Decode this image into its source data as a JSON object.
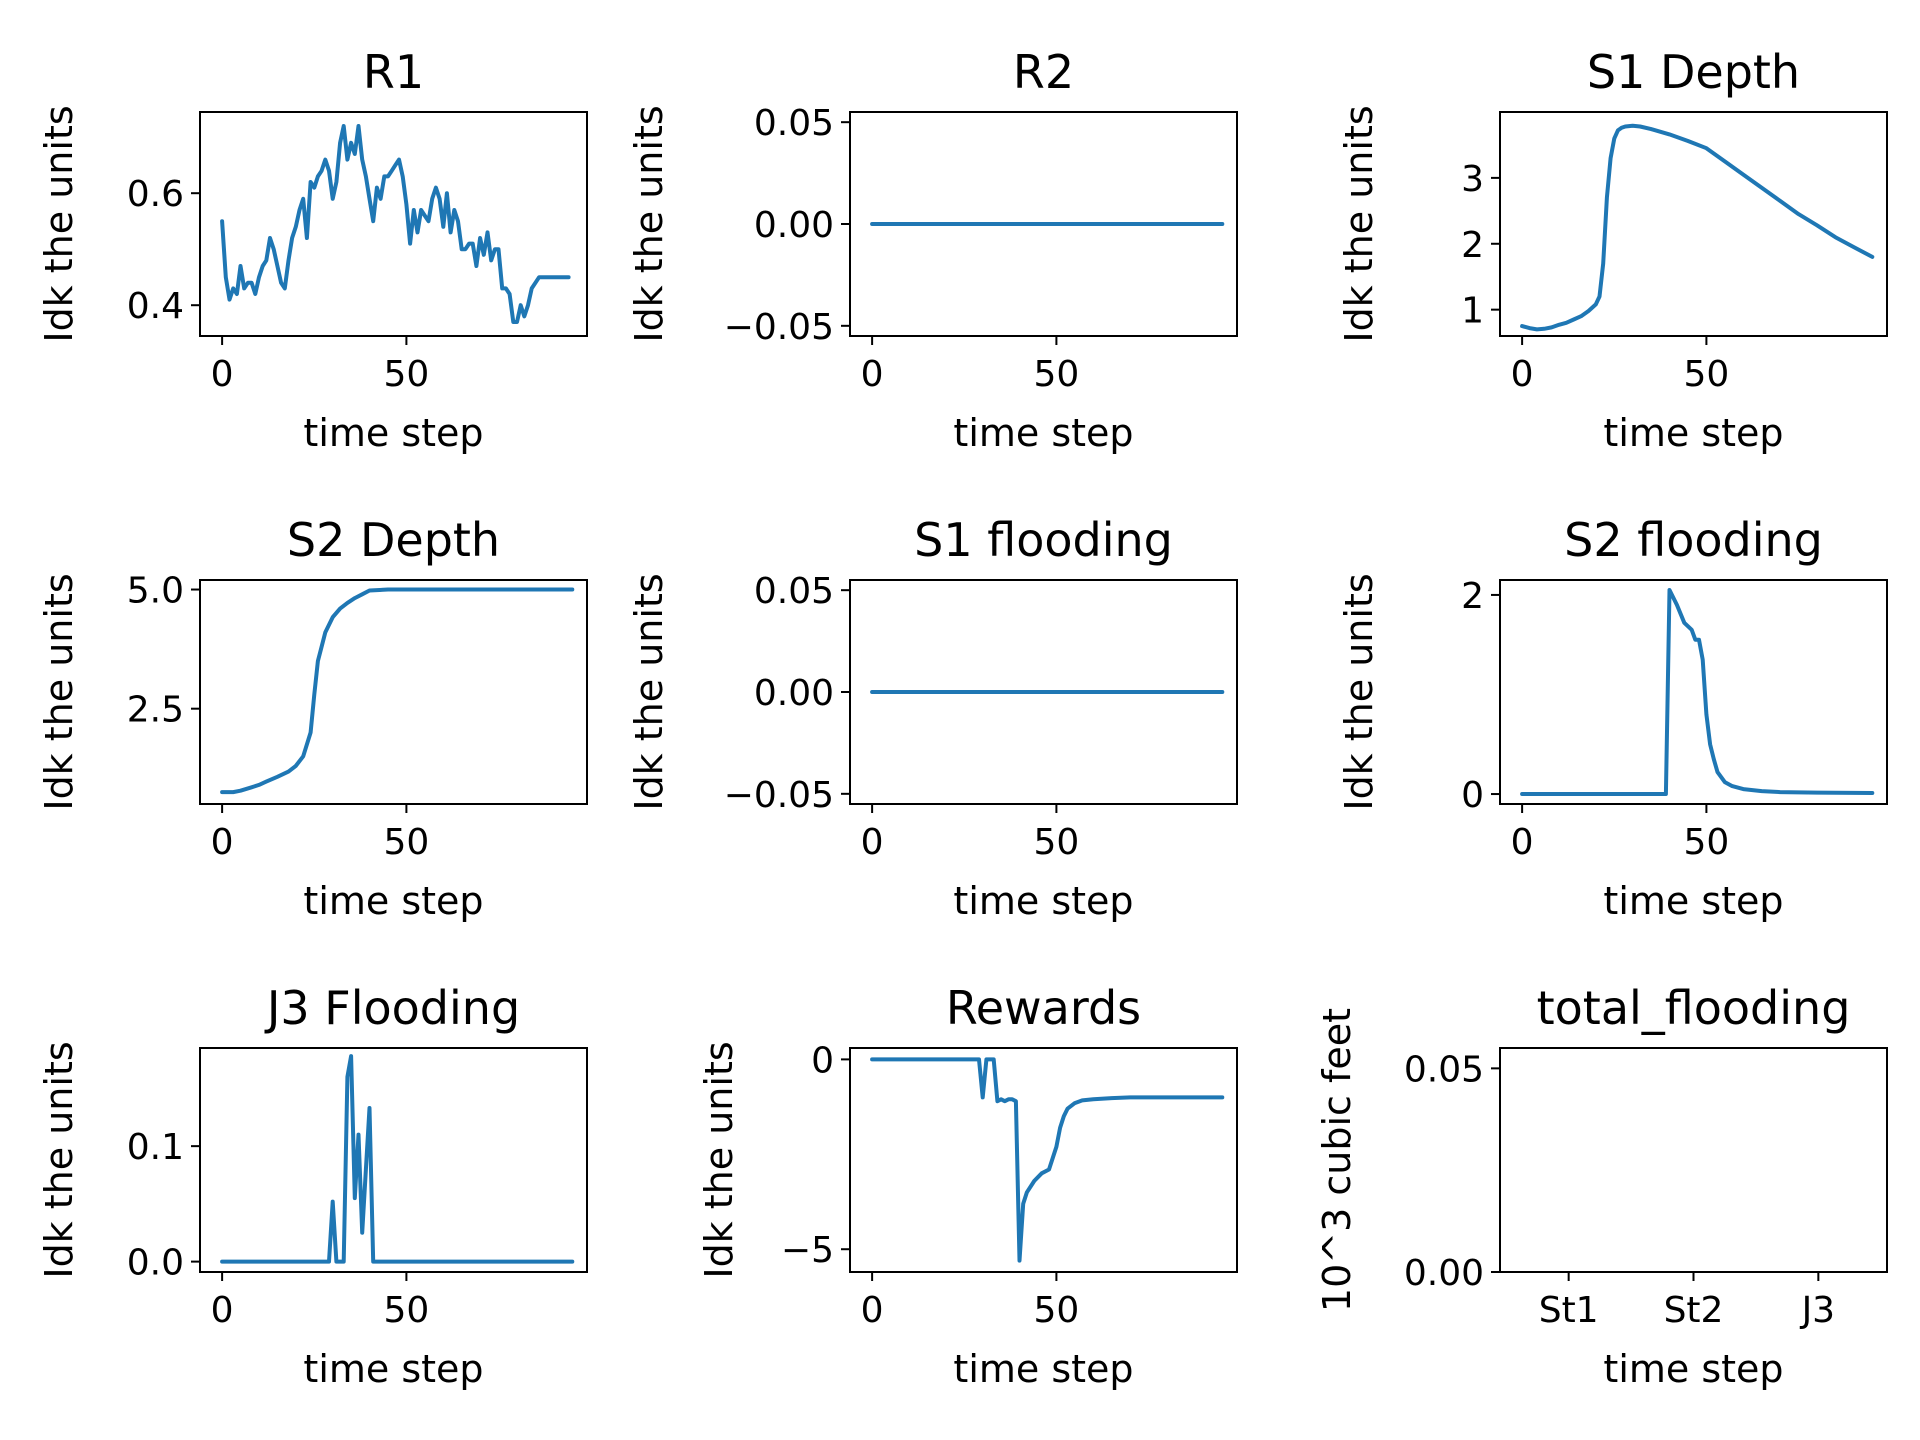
{
  "colors": {
    "series": "#1f77b4"
  },
  "chart_data": [
    {
      "type": "line",
      "title": "R1",
      "xlabel": "time step",
      "ylabel": "Idk the units",
      "xlim": [
        -6,
        99
      ],
      "ylim": [
        0.345,
        0.745
      ],
      "xticks": [
        0,
        50
      ],
      "yticks": [
        0.4,
        0.6
      ],
      "yticklabels": [
        "0.4",
        "0.6"
      ],
      "series": [
        {
          "x": [
            0,
            1,
            2,
            3,
            4,
            5,
            6,
            7,
            8,
            9,
            10,
            11,
            12,
            13,
            14,
            15,
            16,
            17,
            18,
            19,
            20,
            21,
            22,
            23,
            24,
            25,
            26,
            27,
            28,
            29,
            30,
            31,
            32,
            33,
            34,
            35,
            36,
            37,
            38,
            39,
            40,
            41,
            42,
            43,
            44,
            45,
            46,
            47,
            48,
            49,
            50,
            51,
            52,
            53,
            54,
            55,
            56,
            57,
            58,
            59,
            60,
            61,
            62,
            63,
            64,
            65,
            66,
            67,
            68,
            69,
            70,
            71,
            72,
            73,
            74,
            75,
            76,
            77,
            78,
            79,
            80,
            81,
            82,
            83,
            84,
            85,
            86,
            87,
            88,
            89,
            90,
            91,
            92,
            93,
            94
          ],
          "y": [
            0.55,
            0.45,
            0.41,
            0.43,
            0.42,
            0.47,
            0.43,
            0.44,
            0.44,
            0.42,
            0.45,
            0.47,
            0.48,
            0.52,
            0.5,
            0.47,
            0.44,
            0.43,
            0.48,
            0.52,
            0.54,
            0.57,
            0.59,
            0.52,
            0.62,
            0.61,
            0.63,
            0.64,
            0.66,
            0.64,
            0.59,
            0.62,
            0.69,
            0.72,
            0.66,
            0.69,
            0.67,
            0.72,
            0.66,
            0.63,
            0.59,
            0.55,
            0.61,
            0.59,
            0.63,
            0.63,
            0.64,
            0.65,
            0.66,
            0.63,
            0.58,
            0.51,
            0.57,
            0.53,
            0.57,
            0.56,
            0.55,
            0.59,
            0.61,
            0.59,
            0.54,
            0.6,
            0.53,
            0.57,
            0.55,
            0.5,
            0.5,
            0.51,
            0.51,
            0.47,
            0.52,
            0.49,
            0.53,
            0.48,
            0.5,
            0.5,
            0.43,
            0.43,
            0.42,
            0.37,
            0.37,
            0.4,
            0.38,
            0.4,
            0.43,
            0.44,
            0.45,
            0.45,
            0.45,
            0.45,
            0.45,
            0.45,
            0.45,
            0.45,
            0.45
          ]
        }
      ]
    },
    {
      "type": "line",
      "title": "R2",
      "xlabel": "time step",
      "ylabel": "Idk the units",
      "xlim": [
        -6,
        99
      ],
      "ylim": [
        -0.055,
        0.055
      ],
      "xticks": [
        0,
        50
      ],
      "yticks": [
        -0.05,
        0.0,
        0.05
      ],
      "yticklabels": [
        "−0.05",
        "0.00",
        "0.05"
      ],
      "series": [
        {
          "x": [
            0,
            95
          ],
          "y": [
            0,
            0
          ]
        }
      ]
    },
    {
      "type": "line",
      "title": "S1 Depth",
      "xlabel": "time step",
      "ylabel": "Idk the units",
      "xlim": [
        -6,
        99
      ],
      "ylim": [
        0.6,
        4.0
      ],
      "xticks": [
        0,
        50
      ],
      "yticks": [
        1,
        2,
        3
      ],
      "yticklabels": [
        "1",
        "2",
        "3"
      ],
      "series": [
        {
          "x": [
            0,
            2,
            4,
            6,
            8,
            10,
            12,
            14,
            16,
            18,
            20,
            21,
            22,
            23,
            24,
            25,
            26,
            27,
            28,
            30,
            32,
            35,
            40,
            45,
            50,
            55,
            60,
            65,
            70,
            75,
            80,
            85,
            90,
            95
          ],
          "y": [
            0.75,
            0.72,
            0.7,
            0.71,
            0.73,
            0.77,
            0.8,
            0.85,
            0.9,
            0.98,
            1.08,
            1.2,
            1.7,
            2.7,
            3.3,
            3.6,
            3.72,
            3.76,
            3.78,
            3.79,
            3.78,
            3.74,
            3.66,
            3.56,
            3.45,
            3.25,
            3.05,
            2.85,
            2.65,
            2.45,
            2.28,
            2.1,
            1.95,
            1.8
          ]
        }
      ]
    },
    {
      "type": "line",
      "title": "S2 Depth",
      "xlabel": "time step",
      "ylabel": "Idk the units",
      "xlim": [
        -6,
        99
      ],
      "ylim": [
        0.5,
        5.2
      ],
      "xticks": [
        0,
        50
      ],
      "yticks": [
        2.5,
        5.0
      ],
      "yticklabels": [
        "2.5",
        "5.0"
      ],
      "series": [
        {
          "x": [
            0,
            3,
            5,
            8,
            10,
            12,
            15,
            18,
            20,
            22,
            24,
            25,
            26,
            27,
            28,
            30,
            32,
            34,
            36,
            38,
            40,
            45,
            50,
            60,
            70,
            80,
            90,
            95
          ],
          "y": [
            0.75,
            0.75,
            0.78,
            0.85,
            0.9,
            0.97,
            1.07,
            1.18,
            1.3,
            1.5,
            2.0,
            2.8,
            3.5,
            3.8,
            4.1,
            4.42,
            4.6,
            4.72,
            4.82,
            4.9,
            4.98,
            5.0,
            5.0,
            5.0,
            5.0,
            5.0,
            5.0,
            5.0
          ]
        }
      ]
    },
    {
      "type": "line",
      "title": "S1 flooding",
      "xlabel": "time step",
      "ylabel": "Idk the units",
      "xlim": [
        -6,
        99
      ],
      "ylim": [
        -0.055,
        0.055
      ],
      "xticks": [
        0,
        50
      ],
      "yticks": [
        -0.05,
        0.0,
        0.05
      ],
      "yticklabels": [
        "−0.05",
        "0.00",
        "0.05"
      ],
      "series": [
        {
          "x": [
            0,
            95
          ],
          "y": [
            0,
            0
          ]
        }
      ]
    },
    {
      "type": "line",
      "title": "S2 flooding",
      "xlabel": "time step",
      "ylabel": "Idk the units",
      "xlim": [
        -6,
        99
      ],
      "ylim": [
        -0.1,
        2.15
      ],
      "xticks": [
        0,
        50
      ],
      "yticks": [
        0,
        2
      ],
      "yticklabels": [
        "0",
        "2"
      ],
      "series": [
        {
          "x": [
            0,
            39,
            40,
            42,
            44,
            46,
            47,
            48,
            49,
            50,
            51,
            52,
            53,
            55,
            57,
            60,
            65,
            70,
            80,
            95
          ],
          "y": [
            0,
            0,
            2.05,
            1.9,
            1.72,
            1.65,
            1.55,
            1.55,
            1.35,
            0.8,
            0.5,
            0.35,
            0.22,
            0.12,
            0.08,
            0.05,
            0.03,
            0.02,
            0.015,
            0.01
          ]
        }
      ]
    },
    {
      "type": "line",
      "title": "J3 Flooding",
      "xlabel": "time step",
      "ylabel": "Idk the units",
      "xlim": [
        -6,
        99
      ],
      "ylim": [
        -0.009,
        0.185
      ],
      "xticks": [
        0,
        50
      ],
      "yticks": [
        0.0,
        0.1
      ],
      "yticklabels": [
        "0.0",
        "0.1"
      ],
      "series": [
        {
          "x": [
            0,
            29,
            30,
            31,
            32,
            33,
            34,
            35,
            36,
            37,
            38,
            39,
            40,
            41,
            42,
            95
          ],
          "y": [
            0,
            0,
            0.052,
            0,
            0,
            0,
            0.16,
            0.178,
            0.055,
            0.11,
            0.025,
            0.08,
            0.133,
            0,
            0,
            0
          ]
        }
      ]
    },
    {
      "type": "line",
      "title": "Rewards",
      "xlabel": "time step",
      "ylabel": "Idk the units",
      "xlim": [
        -6,
        99
      ],
      "ylim": [
        -5.6,
        0.3
      ],
      "xticks": [
        0,
        50
      ],
      "yticks": [
        -5,
        0
      ],
      "yticklabels": [
        "−5",
        "0"
      ],
      "series": [
        {
          "x": [
            0,
            29,
            30,
            31,
            32,
            33,
            34,
            35,
            36,
            37,
            38,
            39,
            40,
            41,
            42,
            44,
            46,
            48,
            49,
            50,
            51,
            52,
            53,
            55,
            57,
            60,
            65,
            70,
            80,
            95
          ],
          "y": [
            0,
            0,
            -1.0,
            0,
            0,
            0,
            -1.1,
            -1.05,
            -1.1,
            -1.05,
            -1.05,
            -1.1,
            -5.3,
            -3.8,
            -3.5,
            -3.2,
            -3.0,
            -2.9,
            -2.6,
            -2.3,
            -1.8,
            -1.5,
            -1.3,
            -1.15,
            -1.08,
            -1.05,
            -1.02,
            -1.0,
            -1.0,
            -1.0
          ]
        }
      ]
    },
    {
      "type": "bar",
      "title": "total_flooding",
      "xlabel": "time step",
      "ylabel": "10^3 cubic feet",
      "categories": [
        "St1",
        "St2",
        "J3"
      ],
      "values": [
        0,
        0,
        0
      ],
      "xlim": [
        -0.55,
        2.55
      ],
      "ylim": [
        0.0,
        0.055
      ],
      "yticks": [
        0.0,
        0.05
      ],
      "yticklabels": [
        "0.00",
        "0.05"
      ]
    }
  ]
}
